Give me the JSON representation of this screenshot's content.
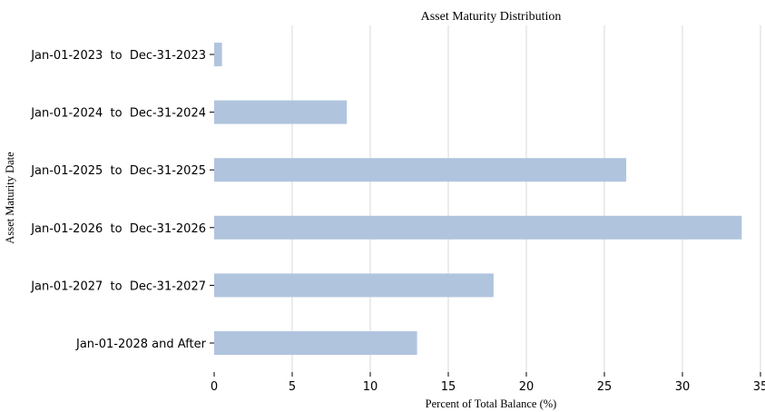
{
  "chart_data": {
    "type": "bar",
    "orientation": "horizontal",
    "title": "Asset Maturity Distribution",
    "xlabel": "Percent of Total Balance (%)",
    "ylabel": "Asset Maturity Date",
    "categories": [
      "Jan-01-2023  to  Dec-31-2023",
      "Jan-01-2024  to  Dec-31-2024",
      "Jan-01-2025  to  Dec-31-2025",
      "Jan-01-2026  to  Dec-31-2026",
      "Jan-01-2027  to  Dec-31-2027",
      "Jan-01-2028 and After"
    ],
    "values": [
      0.5,
      8.5,
      26.4,
      33.8,
      17.9,
      13.0
    ],
    "xlim": [
      0,
      35
    ],
    "xticks": [
      0,
      5,
      10,
      15,
      20,
      25,
      30,
      35
    ],
    "bar_color": "#b0c4de",
    "grid": "vertical",
    "legend": "none"
  }
}
